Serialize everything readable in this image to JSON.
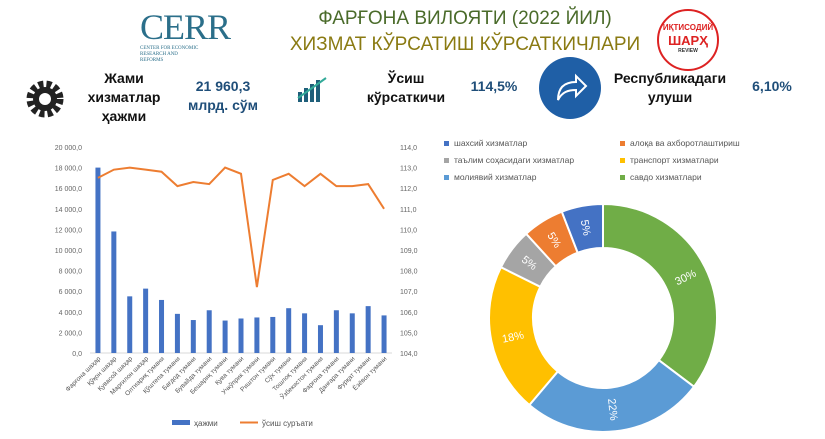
{
  "header": {
    "title_line1": "ФАРҒОНА ВИЛОЯТИ (2022 ЙИЛ)",
    "title_line2": "ХИЗМАТ КЎРСАТИШ КЎРСАТКИЧЛАРИ",
    "logo_left": {
      "name": "CERR",
      "subtitle": "CENTER FOR ECONOMIC RESEARCH AND REFORMS"
    },
    "logo_right": {
      "line1": "ИҚТИСОДИЙ",
      "line2": "ШАРҲ",
      "line3": "REVIEW"
    }
  },
  "kpis": [
    {
      "icon": "gear-icon",
      "label": "Жами хизматлар ҳажми",
      "value": "21 960,3 млрд. сўм"
    },
    {
      "icon": "growth-chart-icon",
      "label": "Ўсиш кўрсаткичи",
      "value": "114,5%"
    },
    {
      "icon": "share-arrow-icon",
      "label": "Республикадаги улуши",
      "value": "6,10%"
    }
  ],
  "chart_data": [
    {
      "type": "bar+line",
      "categories": [
        "Фарғона шаҳар",
        "Қўқон шаҳар",
        "Қувасой шаҳар",
        "Марғилон шаҳар",
        "Олтиариқ тумани",
        "Қўштепа тумани",
        "Бағдод тумани",
        "Бувайда тумани",
        "Бешариқ тумани",
        "Қува тумани",
        "Учкўприк тумани",
        "Риштон тумани",
        "Сўх тумани",
        "Тошлоқ тумани",
        "Ўзбекистон тумани",
        "Фарғона тумани",
        "Данғара тумани",
        "Фурқат тумани",
        "Ёзёвон тумани"
      ],
      "series": [
        {
          "name": "ҳажми",
          "type": "bar",
          "axis": "left",
          "color": "#4472c4",
          "values": [
            18000,
            11800,
            5500,
            6250,
            5150,
            3800,
            3200,
            4150,
            3150,
            3350,
            3450,
            3500,
            4350,
            3850,
            2700,
            4150,
            3850,
            4550,
            3650
          ]
        },
        {
          "name": "ўсиш суръати",
          "type": "line",
          "axis": "right",
          "color": "#ed7d31",
          "values": [
            112.5,
            112.9,
            113.0,
            112.9,
            112.8,
            112.1,
            112.3,
            112.2,
            113.0,
            112.7,
            107.2,
            112.4,
            112.7,
            112.1,
            112.7,
            112.1,
            112.1,
            112.2,
            111.0
          ]
        }
      ],
      "y_left": {
        "range": [
          0,
          20000
        ],
        "ticks": [
          "0,0",
          "2 000,0",
          "4 000,0",
          "6 000,0",
          "8 000,0",
          "10 000,0",
          "12 000,0",
          "14 000,0",
          "16 000,0",
          "18 000,0",
          "20 000,0"
        ]
      },
      "y_right": {
        "range": [
          104,
          114
        ],
        "ticks": [
          "104,0",
          "105,0",
          "106,0",
          "107,0",
          "108,0",
          "109,0",
          "110,0",
          "111,0",
          "112,0",
          "113,0",
          "114,0"
        ]
      },
      "legend": "bottom"
    },
    {
      "type": "donut",
      "legend": "top",
      "slices": [
        {
          "name": "савдо хизматлари",
          "value": 30,
          "label": "30%",
          "color": "#70ad47"
        },
        {
          "name": "молиявий хизматлар",
          "value": 22,
          "label": "22%",
          "color": "#5b9bd5"
        },
        {
          "name": "транспорт хизматлари",
          "value": 18,
          "label": "18%",
          "color": "#ffc000"
        },
        {
          "name": "таълим соҳасидаги хизматлар",
          "value": 5,
          "label": "5%",
          "color": "#a5a5a5"
        },
        {
          "name": "алоқа ва ахборотлаштириш",
          "value": 5,
          "label": "5%",
          "color": "#ed7d31"
        },
        {
          "name": "шахсий хизматлар",
          "value": 5,
          "label": "5%",
          "color": "#4472c4"
        }
      ],
      "legend_order": [
        "шахсий хизматлар",
        "алоқа ва ахборотлаштириш",
        "таълим соҳасидаги хизматлар",
        "транспорт хизматлари",
        "молиявий хизматлар",
        "савдо хизматлари"
      ]
    }
  ]
}
